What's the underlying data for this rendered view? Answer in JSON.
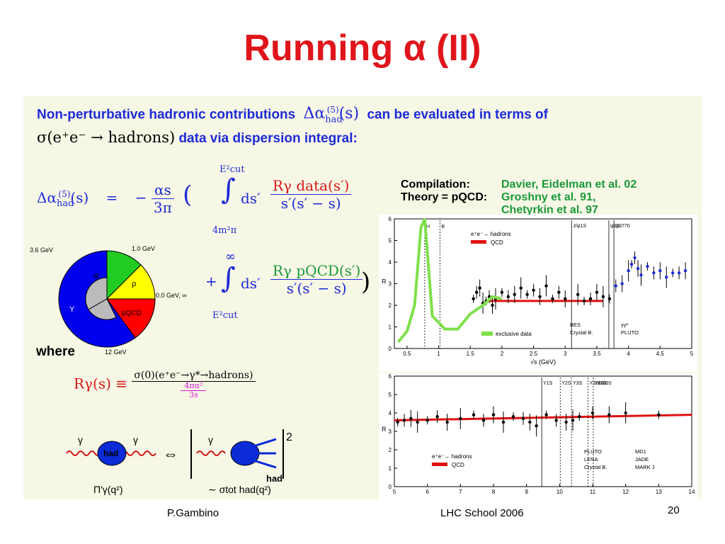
{
  "slide": {
    "title": "Running α  (II)",
    "intro_part1": "Non-perturbative hadronic contributions",
    "intro_part2": "can be evaluated in terms of",
    "intro_math_delta": "Δα",
    "intro_math_sub": "had",
    "intro_math_sup": "(5)",
    "intro_math_arg": "(s)",
    "line2_math": "σ(e⁺e⁻ → hadrons)",
    "line2_text": "data via dispersion integral:",
    "where_label": "where",
    "footer_author": "P.Gambino",
    "footer_event": "LHC School 2006",
    "page_number": "20"
  },
  "formula": {
    "lhs": "Δα",
    "lhs_sub": "had",
    "lhs_sup": "(5)",
    "lhs_arg": "(s)",
    "equals": "=",
    "prefactor_num": "αs",
    "prefactor_den": "3π",
    "minus": "−",
    "open_paren": "(",
    "close_paren": ")",
    "int1_upper": "E²cut",
    "int1_lower": "4m²π",
    "int2_upper": "∞",
    "int2_lower": "E²cut",
    "integral": "∫",
    "ds": "ds′",
    "plus": "+",
    "r_data": "Rγ data(s′)",
    "r_pqcd": "Rγ pQCD(s′)",
    "denominator": "s′(s′ − s)"
  },
  "ratio_def": {
    "lhs": "Rγ(s) ≡",
    "num": "σ(0)(e⁺e⁻→γ*→hadrons)",
    "den_top": "4πα²",
    "den_bot": "3s"
  },
  "feynman": {
    "gamma_left": "γ",
    "gamma_right": "γ",
    "blob_label": "had",
    "equiv": "⇔",
    "square": "2",
    "had_label": "had",
    "pi_label": "Π′γ(q²)",
    "sigma_label": "∼ σtot had(q²)"
  },
  "pie": {
    "labels": [
      "3.6 GeV",
      "1.0 GeV",
      "0.0 GeV, ∞",
      "12 GeV"
    ],
    "slices": [
      {
        "name": "ψ",
        "color": "#22cc22"
      },
      {
        "name": "ρ",
        "color": "#ffff00"
      },
      {
        "name": "pQCD",
        "color": "#ff0000"
      },
      {
        "name": "Υ",
        "color": "#0000ee"
      }
    ]
  },
  "compilation": {
    "label1": "Compilation:",
    "label2": "Theory = pQCD:",
    "value1": "Davier, Eidelman et al. 02",
    "value2": "Groshny et al. 91,",
    "value3": "Chetyrkin et al. 97"
  },
  "chart_data": [
    {
      "type": "scatter",
      "title": "",
      "xlabel": "√s  (GeV)",
      "ylabel": "R",
      "xlim": [
        0.3,
        5.0
      ],
      "ylim": [
        0,
        6
      ],
      "xticks": [
        "0.5",
        "1",
        "1.5",
        "2",
        "2.5",
        "3",
        "3.5",
        "4",
        "4.5",
        "5"
      ],
      "yticks": [
        "0",
        "1",
        "2",
        "3",
        "4",
        "5",
        "6"
      ],
      "legend_left": [
        "e⁺e⁻→ hadrons",
        "QCD"
      ],
      "legend_bottom": [
        "exclusive data"
      ],
      "legend_right": [
        "BES",
        "γγ²",
        "Crystal B.",
        "PLUTO"
      ],
      "resonance_labels": [
        "ω",
        "φ",
        "J/ψ1S",
        "ψ2S",
        "ψ3770"
      ],
      "qcd_line": {
        "x": [
          1.8,
          3.6
        ],
        "y": [
          2.2,
          2.2
        ]
      },
      "points": {
        "x": [
          1.55,
          1.6,
          1.65,
          1.7,
          1.75,
          1.8,
          1.85,
          1.9,
          2.0,
          2.1,
          2.2,
          2.3,
          2.4,
          2.5,
          2.6,
          2.7,
          2.8,
          2.9,
          3.0,
          3.2,
          3.3,
          3.4,
          3.5,
          3.6,
          3.7,
          3.8,
          3.9,
          4.0,
          4.05,
          4.1,
          4.15,
          4.2,
          4.3,
          4.4,
          4.5,
          4.6,
          4.7,
          4.8,
          4.9
        ],
        "y": [
          2.3,
          2.6,
          2.8,
          2.1,
          2.2,
          2.4,
          2.0,
          2.3,
          2.6,
          2.4,
          2.5,
          2.8,
          2.5,
          2.7,
          2.4,
          2.9,
          2.3,
          2.6,
          2.3,
          2.5,
          2.2,
          2.3,
          2.6,
          2.4,
          2.3,
          2.9,
          3.0,
          3.6,
          3.9,
          4.2,
          3.7,
          3.4,
          3.8,
          3.5,
          3.6,
          3.3,
          3.5,
          3.5,
          3.6
        ]
      }
    },
    {
      "type": "scatter",
      "title": "",
      "xlabel": "",
      "ylabel": "R",
      "xlim": [
        5,
        14
      ],
      "ylim": [
        0,
        6
      ],
      "xticks": [
        "5",
        "6",
        "7",
        "8",
        "9",
        "10",
        "11",
        "12",
        "13",
        "14"
      ],
      "yticks": [
        "0",
        "1",
        "2",
        "3",
        "4",
        "5",
        "6"
      ],
      "legend_left": [
        "e⁺e⁻→ hadrons",
        "QCD"
      ],
      "legend_right": [
        "PLUTO",
        "MD1",
        "LENA",
        "JADE",
        "Crystal B.",
        "MARK J"
      ],
      "resonance_labels": [
        "Υ1S",
        "Υ2S",
        "Υ3S",
        "Υ10860",
        "Υ11020"
      ],
      "qcd_line": {
        "x": [
          5.0,
          14.0
        ],
        "y": [
          3.6,
          3.9
        ]
      },
      "points": {
        "x": [
          5.1,
          5.3,
          5.5,
          5.7,
          6.0,
          6.3,
          6.6,
          7.0,
          7.4,
          7.7,
          8.0,
          8.3,
          8.6,
          8.9,
          9.1,
          9.3,
          9.6,
          9.9,
          10.2,
          10.4,
          10.6,
          11.0,
          11.5,
          12.0,
          13.0
        ],
        "y": [
          3.5,
          3.6,
          3.7,
          3.5,
          3.6,
          3.8,
          3.5,
          3.7,
          3.9,
          3.6,
          3.9,
          3.5,
          3.8,
          3.7,
          3.5,
          3.3,
          3.9,
          3.6,
          3.5,
          3.6,
          3.8,
          4.0,
          3.9,
          4.0,
          3.9
        ]
      }
    }
  ]
}
